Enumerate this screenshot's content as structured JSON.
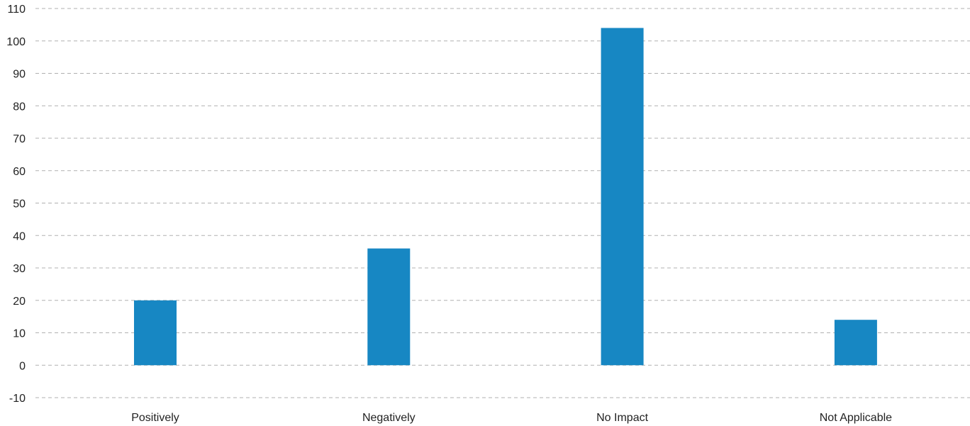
{
  "colors": {
    "bar": "#1787c3",
    "grid": "#b0b0b0",
    "text": "#222222"
  },
  "chart_data": {
    "type": "bar",
    "title": "",
    "xlabel": "",
    "ylabel": "",
    "categories": [
      "Positively",
      "Negatively",
      "No Impact",
      "Not Applicable"
    ],
    "values": [
      20,
      36,
      104,
      14
    ],
    "ylim": [
      -10,
      110
    ],
    "yticks": [
      -10,
      0,
      10,
      20,
      30,
      40,
      50,
      60,
      70,
      80,
      90,
      100,
      110
    ],
    "grid": true,
    "legend": "none"
  }
}
